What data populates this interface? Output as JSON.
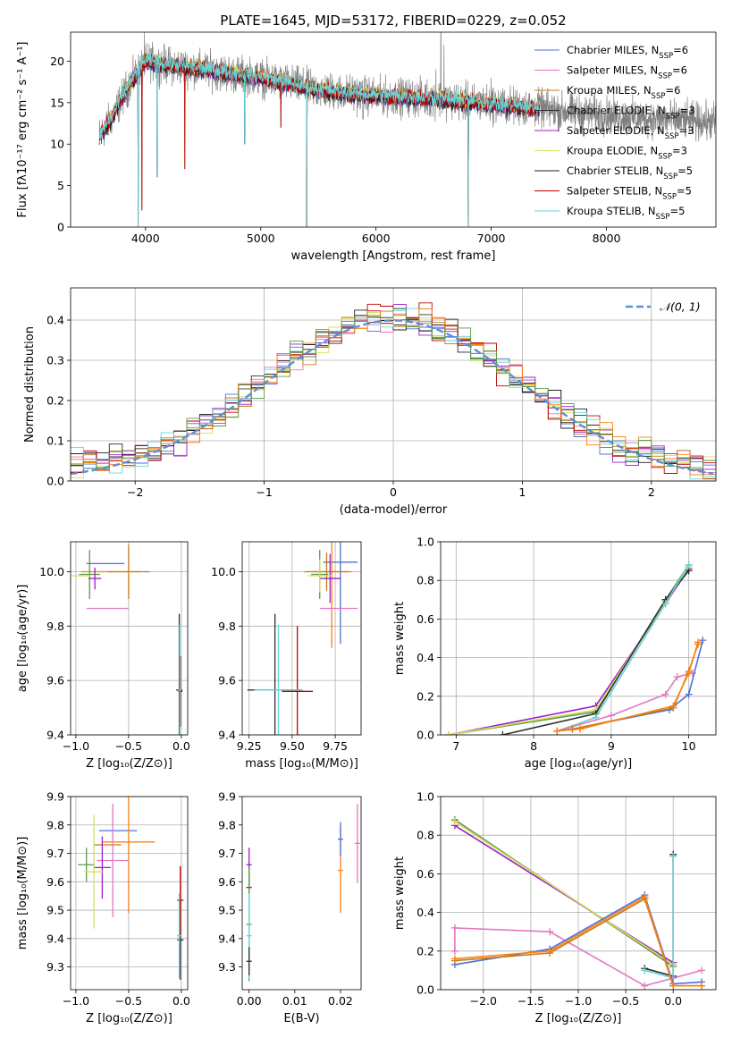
{
  "title": "PLATE=1645, MJD=53172, FIBERID=0229, z=0.052",
  "colors": {
    "chabrier_miles": "#4c72d8",
    "salpeter_miles": "#e377c2",
    "kroupa_miles": "#c47a18",
    "chabrier_elodie": "#2f2f2f",
    "salpeter_elodie": "#9b1fc9",
    "kroupa_elodie": "#d8e05a",
    "chabrier_stelib": "#222222",
    "salpeter_stelib": "#c00000",
    "kroupa_stelib": "#67d3d6",
    "data_spectrum": "#808080",
    "normal_curve": "#5b8fd8",
    "green_models": "#5a9a4a",
    "orange_models": "#ff7f0e"
  },
  "legend_spectrum": [
    {
      "label": "Chabrier MILES, N",
      "sub": "SSP",
      "tail": "=6",
      "color": "#4c72d8"
    },
    {
      "label": "Salpeter MILES, N",
      "sub": "SSP",
      "tail": "=6",
      "color": "#e377c2"
    },
    {
      "label": "Kroupa MILES, N",
      "sub": "SSP",
      "tail": "=6",
      "color": "#c47a18"
    },
    {
      "label": "Chabrier ELODIE, N",
      "sub": "SSP",
      "tail": "=3",
      "color": "#2f2f2f"
    },
    {
      "label": "Salpeter ELODIE, N",
      "sub": "SSP",
      "tail": "=3",
      "color": "#9b1fc9"
    },
    {
      "label": "Kroupa ELODIE, N",
      "sub": "SSP",
      "tail": "=3",
      "color": "#d8e05a"
    },
    {
      "label": "Chabrier STELIB, N",
      "sub": "SSP",
      "tail": "=5",
      "color": "#222222"
    },
    {
      "label": "Salpeter STELIB, N",
      "sub": "SSP",
      "tail": "=5",
      "color": "#c00000"
    },
    {
      "label": "Kroupa STELIB, N",
      "sub": "SSP",
      "tail": "=5",
      "color": "#67d3d6"
    }
  ],
  "legend_hist": {
    "label": "𝒩(0, 1)"
  },
  "chart_data": [
    {
      "id": "spectrum",
      "type": "line",
      "xlabel": "wavelength [Angstrom, rest frame]",
      "ylabel": "Flux [fλ10⁻¹⁷ erg cm⁻² s⁻¹ A⁻¹]",
      "xlim": [
        3350,
        8950
      ],
      "ylim": [
        0,
        23.5
      ],
      "xticks": [
        4000,
        5000,
        6000,
        7000,
        8000
      ],
      "yticks": [
        0,
        5,
        10,
        15,
        20
      ],
      "legend_loc": "upper right",
      "grid": false,
      "data_range": [
        3600,
        9000
      ],
      "model_range": [
        3600,
        7420
      ],
      "continuum": [
        [
          3600,
          11
        ],
        [
          3700,
          13
        ],
        [
          3850,
          17
        ],
        [
          4000,
          20
        ],
        [
          4200,
          19.5
        ],
        [
          4500,
          19
        ],
        [
          5000,
          18
        ],
        [
          5500,
          16.5
        ],
        [
          6000,
          15.8
        ],
        [
          6500,
          15.5
        ],
        [
          7000,
          14.8
        ],
        [
          7400,
          14.3
        ],
        [
          8000,
          13.4
        ],
        [
          8500,
          13
        ],
        [
          9000,
          12.6
        ]
      ],
      "absorption_dips": [
        [
          3935,
          0
        ],
        [
          3970,
          2
        ],
        [
          4100,
          6
        ],
        [
          4340,
          7
        ],
        [
          4861,
          10
        ],
        [
          5175,
          12
        ],
        [
          5400,
          0
        ],
        [
          5890,
          13
        ],
        [
          6800,
          0
        ],
        [
          7430,
          0
        ]
      ],
      "emission_spikes": [
        [
          3990,
          23.5
        ],
        [
          6520,
          19
        ],
        [
          6563,
          23.5
        ],
        [
          6590,
          22
        ],
        [
          7000,
          18
        ]
      ]
    },
    {
      "id": "residual_histogram",
      "type": "bar",
      "xlabel": "(data-model)/error",
      "ylabel": "Normed distribution",
      "xlim": [
        -2.5,
        2.5
      ],
      "ylim": [
        0,
        0.48
      ],
      "xticks": [
        -2,
        -1,
        0,
        1,
        2
      ],
      "yticks": [
        0.0,
        0.1,
        0.2,
        0.3,
        0.4
      ],
      "grid": true,
      "bin_width": 0.1,
      "normal_curve": {
        "mean": 0,
        "sigma": 1
      }
    },
    {
      "id": "age_vs_metallicity",
      "type": "scatter",
      "xlabel": "Z [log₁₀(Z/Z⊙)]",
      "ylabel": "age  [log₁₀(age/yr)]",
      "xlim": [
        -1.05,
        0.06
      ],
      "ylim": [
        9.4,
        10.11
      ],
      "xticks": [
        -1.0,
        -0.5,
        0.0
      ],
      "yticks": [
        9.4,
        9.6,
        9.8,
        10.0
      ],
      "grid": true,
      "points": [
        {
          "x": -0.72,
          "y": 10.03,
          "xerr": 0.18,
          "yerr": 0.0,
          "color": "#4c72d8"
        },
        {
          "x": -0.68,
          "y": 10.0,
          "xerr": 0.27,
          "yerr": 0.0,
          "color": "#ff7f0e"
        },
        {
          "x": -0.5,
          "y": 10.0,
          "xerr": 0.2,
          "yerr": 0.1,
          "color": "#c47a18"
        },
        {
          "x": -0.7,
          "y": 9.865,
          "xerr": 0.2,
          "yerr": 0.0,
          "color": "#e377c2"
        },
        {
          "x": -0.87,
          "y": 9.99,
          "xerr": 0.1,
          "yerr": 0.09,
          "color": "#5a9a4a"
        },
        {
          "x": -0.82,
          "y": 9.975,
          "xerr": 0.06,
          "yerr": 0.04,
          "color": "#9b1fc9"
        },
        {
          "x": -0.95,
          "y": 9.985,
          "xerr": 0.1,
          "yerr": 0.0,
          "color": "#d8e05a"
        },
        {
          "x": -0.02,
          "y": 9.565,
          "xerr": 0.03,
          "yerr": 0.28,
          "color": "#2f2f2f"
        },
        {
          "x": -0.01,
          "y": 9.56,
          "xerr": 0.02,
          "yerr": 0.13,
          "color": "#c00000"
        },
        {
          "x": -0.015,
          "y": 9.565,
          "xerr": 0.015,
          "yerr": 0.24,
          "color": "#67d3d6"
        }
      ]
    },
    {
      "id": "age_vs_mass",
      "type": "scatter",
      "xlabel": "mass [log₁₀(M/M⊙)]",
      "ylabel": "",
      "xlim": [
        9.21,
        9.9
      ],
      "ylim": [
        9.4,
        10.11
      ],
      "xticks": [
        9.25,
        9.5,
        9.75
      ],
      "yticks": [
        9.4,
        9.6,
        9.8,
        10.0
      ],
      "grid": true,
      "points": [
        {
          "x": 9.78,
          "y": 10.035,
          "xerr": 0.1,
          "yerr": 0.3,
          "color": "#4c72d8"
        },
        {
          "x": 9.73,
          "y": 10.0,
          "xerr": 0.12,
          "yerr": 0.28,
          "color": "#ff7f0e"
        },
        {
          "x": 9.7,
          "y": 10.0,
          "xerr": 0.13,
          "yerr": 0.07,
          "color": "#c47a18"
        },
        {
          "x": 9.77,
          "y": 9.865,
          "xerr": 0.11,
          "yerr": 0.0,
          "color": "#e377c2"
        },
        {
          "x": 9.66,
          "y": 9.99,
          "xerr": 0.05,
          "yerr": 0.09,
          "color": "#5a9a4a"
        },
        {
          "x": 9.72,
          "y": 9.975,
          "xerr": 0.06,
          "yerr": 0.09,
          "color": "#9b1fc9"
        },
        {
          "x": 9.66,
          "y": 9.985,
          "xerr": 0.07,
          "yerr": 0.06,
          "color": "#d8e05a"
        },
        {
          "x": 9.4,
          "y": 9.565,
          "xerr": 0.16,
          "yerr": 0.28,
          "color": "#2f2f2f"
        },
        {
          "x": 9.53,
          "y": 9.56,
          "xerr": 0.09,
          "yerr": 0.24,
          "color": "#c00000"
        },
        {
          "x": 9.42,
          "y": 9.565,
          "xerr": 0.14,
          "yerr": 0.24,
          "color": "#67d3d6"
        }
      ]
    },
    {
      "id": "mass_weight_vs_age",
      "type": "line",
      "xlabel": "age  [log₁₀(age/yr)]",
      "ylabel": "mass weight",
      "xlim": [
        6.8,
        10.35
      ],
      "ylim": [
        0,
        1
      ],
      "xticks": [
        7,
        8,
        9,
        10
      ],
      "yticks": [
        0.0,
        0.2,
        0.4,
        0.6,
        0.8,
        1.0
      ],
      "grid": true,
      "series": [
        {
          "color": "#5a9a4a",
          "x": [
            6.9,
            8.8,
            9.7,
            10.0
          ],
          "y": [
            0.0,
            0.12,
            0.7,
            0.88
          ]
        },
        {
          "color": "#9b1fc9",
          "x": [
            6.9,
            8.8,
            9.7,
            10.0
          ],
          "y": [
            0.0,
            0.15,
            0.68,
            0.86
          ]
        },
        {
          "color": "#d8e05a",
          "x": [
            6.9,
            8.8,
            9.7,
            10.0
          ],
          "y": [
            0.0,
            0.13,
            0.69,
            0.87
          ]
        },
        {
          "color": "#2f2f2f",
          "x": [
            7.6,
            8.8,
            9.7,
            10.0
          ],
          "y": [
            0.0,
            0.11,
            0.7,
            0.85
          ]
        },
        {
          "color": "#67d3d6",
          "x": [
            8.3,
            8.8,
            9.7,
            10.0
          ],
          "y": [
            0.02,
            0.09,
            0.68,
            0.88
          ]
        },
        {
          "color": "#e377c2",
          "x": [
            8.3,
            9.0,
            9.7,
            9.85,
            10.05
          ],
          "y": [
            0.02,
            0.1,
            0.21,
            0.3,
            0.32
          ]
        },
        {
          "color": "#4c72d8",
          "x": [
            8.3,
            8.5,
            9.75,
            10.0,
            10.18
          ],
          "y": [
            0.02,
            0.03,
            0.13,
            0.21,
            0.49
          ]
        },
        {
          "color": "#c47a18",
          "x": [
            8.3,
            8.5,
            9.8,
            10.0,
            10.12
          ],
          "y": [
            0.02,
            0.03,
            0.14,
            0.33,
            0.47
          ]
        },
        {
          "color": "#ff7f0e",
          "x": [
            8.3,
            8.6,
            9.8,
            10.0,
            10.12
          ],
          "y": [
            0.02,
            0.03,
            0.15,
            0.32,
            0.48
          ]
        }
      ]
    },
    {
      "id": "mass_vs_metallicity",
      "type": "scatter",
      "xlabel": "Z [log₁₀(Z/Z⊙)]",
      "ylabel": "mass [log₁₀(M/M⊙)]",
      "xlim": [
        -1.05,
        0.06
      ],
      "ylim": [
        9.22,
        9.9
      ],
      "xticks": [
        -1.0,
        -0.5,
        0.0
      ],
      "yticks": [
        9.3,
        9.4,
        9.5,
        9.6,
        9.7,
        9.8,
        9.9
      ],
      "grid": true,
      "points": [
        {
          "x": -0.6,
          "y": 9.78,
          "xerr": 0.18,
          "yerr": 0.0,
          "color": "#4c72d8"
        },
        {
          "x": -0.5,
          "y": 9.74,
          "xerr": 0.25,
          "yerr": 0.25,
          "color": "#ff7f0e"
        },
        {
          "x": -0.7,
          "y": 9.73,
          "xerr": 0.13,
          "yerr": 0.0,
          "color": "#c47a18"
        },
        {
          "x": -0.65,
          "y": 9.675,
          "xerr": 0.15,
          "yerr": 0.2,
          "color": "#e377c2"
        },
        {
          "x": -0.9,
          "y": 9.66,
          "xerr": 0.08,
          "yerr": 0.06,
          "color": "#5a9a4a"
        },
        {
          "x": -0.75,
          "y": 9.65,
          "xerr": 0.08,
          "yerr": 0.11,
          "color": "#9b1fc9"
        },
        {
          "x": -0.83,
          "y": 9.635,
          "xerr": 0.09,
          "yerr": 0.2,
          "color": "#d8e05a"
        },
        {
          "x": -0.01,
          "y": 9.395,
          "xerr": 0.03,
          "yerr": 0.14,
          "color": "#2f2f2f"
        },
        {
          "x": -0.01,
          "y": 9.535,
          "xerr": 0.03,
          "yerr": 0.12,
          "color": "#c00000"
        },
        {
          "x": -0.02,
          "y": 9.41,
          "xerr": 0.02,
          "yerr": 0.15,
          "color": "#67d3d6"
        }
      ]
    },
    {
      "id": "mass_vs_ebv",
      "type": "scatter",
      "xlabel": "E(B-V)",
      "ylabel": "",
      "xlim": [
        -0.0015,
        0.0245
      ],
      "ylim": [
        9.22,
        9.9
      ],
      "xticks": [
        0.0,
        0.01,
        0.02
      ],
      "yticks": [
        9.3,
        9.4,
        9.5,
        9.6,
        9.7,
        9.8,
        9.9
      ],
      "grid": false,
      "points": [
        {
          "x": 0.02,
          "y": 9.64,
          "yerr": 0.15,
          "color": "#ff7f0e"
        },
        {
          "x": 0.02,
          "y": 9.75,
          "yerr": 0.06,
          "color": "#4c72d8"
        },
        {
          "x": 0.0237,
          "y": 9.735,
          "yerr": 0.14,
          "color": "#e377c2"
        },
        {
          "x": 0.0,
          "y": 9.66,
          "yerr": 0.06,
          "color": "#9b1fc9"
        },
        {
          "x": 0.0,
          "y": 9.58,
          "yerr": 0.04,
          "color": "#c00000"
        },
        {
          "x": 0.0,
          "y": 9.45,
          "yerr": 0.2,
          "color": "#5a9a4a"
        },
        {
          "x": 0.0,
          "y": 9.41,
          "yerr": 0.15,
          "color": "#67d3d6"
        },
        {
          "x": 0.0,
          "y": 9.32,
          "yerr": 0.05,
          "color": "#2f2f2f"
        }
      ]
    },
    {
      "id": "mass_weight_vs_metallicity",
      "type": "line",
      "xlabel": "Z [log₁₀(Z/Z⊙)]",
      "ylabel": "mass weight",
      "xlim": [
        -2.45,
        0.45
      ],
      "ylim": [
        0,
        1
      ],
      "xticks": [
        -2.0,
        -1.5,
        -1.0,
        -0.5,
        0.0
      ],
      "yticks": [
        0.0,
        0.2,
        0.4,
        0.6,
        0.8,
        1.0
      ],
      "grid": true,
      "series": [
        {
          "color": "#5a9a4a",
          "x": [
            -2.3,
            0.0
          ],
          "y": [
            0.88,
            0.12
          ]
        },
        {
          "color": "#9b1fc9",
          "x": [
            -2.3,
            0.0
          ],
          "y": [
            0.85,
            0.14
          ]
        },
        {
          "color": "#d8e05a",
          "x": [
            -2.3,
            0.0
          ],
          "y": [
            0.87,
            0.13
          ]
        },
        {
          "color": "#2f2f2f",
          "x": [
            -0.3,
            0.0,
            0.0
          ],
          "y": [
            0.11,
            0.07,
            0.7
          ]
        },
        {
          "color": "#67d3d6",
          "x": [
            -0.3,
            0.0,
            0.0
          ],
          "y": [
            0.1,
            0.06,
            0.69
          ]
        },
        {
          "color": "#e377c2",
          "x": [
            -2.3,
            -2.3,
            -1.3,
            -0.3,
            0.3
          ],
          "y": [
            0.2,
            0.32,
            0.3,
            0.02,
            0.1
          ]
        },
        {
          "color": "#4c72d8",
          "x": [
            -2.3,
            -1.3,
            -0.3,
            0.0,
            0.3
          ],
          "y": [
            0.13,
            0.21,
            0.49,
            0.03,
            0.04
          ]
        },
        {
          "color": "#c47a18",
          "x": [
            -2.3,
            -1.3,
            -0.3,
            0.0,
            0.3
          ],
          "y": [
            0.15,
            0.19,
            0.47,
            0.02,
            0.02
          ]
        },
        {
          "color": "#ff7f0e",
          "x": [
            -2.3,
            -1.3,
            -0.3,
            0.0,
            0.3
          ],
          "y": [
            0.16,
            0.2,
            0.48,
            0.02,
            0.02
          ]
        }
      ]
    }
  ]
}
